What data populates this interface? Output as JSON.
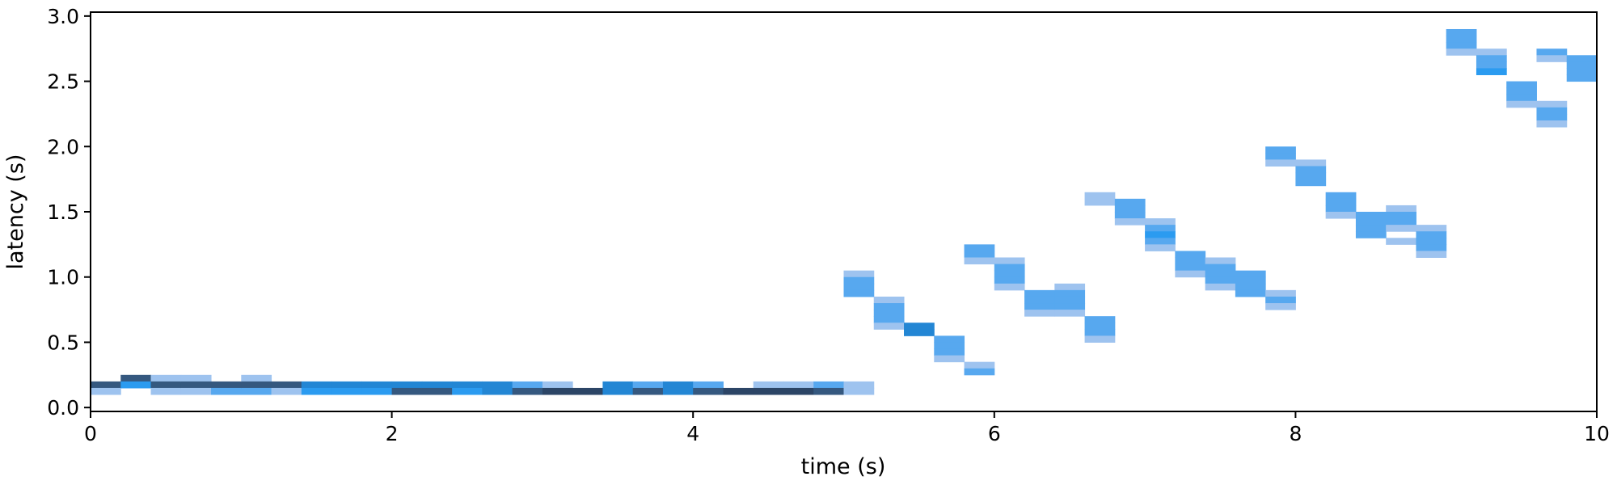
{
  "chart_data": {
    "type": "heatmap",
    "title": "",
    "xlabel": "time (s)",
    "ylabel": "latency (s)",
    "xlim": [
      0,
      10
    ],
    "ylim": [
      -0.03,
      3.03
    ],
    "xticks": [
      0,
      2,
      4,
      6,
      8,
      10
    ],
    "yticks": [
      0.0,
      0.5,
      1.0,
      1.5,
      2.0,
      2.5,
      3.0
    ],
    "xtick_labels": [
      "0",
      "2",
      "4",
      "6",
      "8",
      "10"
    ],
    "ytick_labels": [
      "0.0",
      "0.5",
      "1.0",
      "1.5",
      "2.0",
      "2.5",
      "3.0"
    ],
    "bin_width_s": 0.2,
    "bin_height_s": 0.05,
    "grid": false,
    "legend": "none",
    "colors": {
      "light": "#9ec3ef",
      "medium": "#57a8ef",
      "bright": "#2b9bf0",
      "strong": "#2386d4",
      "dark": "#35587f",
      "darkest": "#2c4566",
      "axis": "#000000"
    },
    "cells": [
      {
        "t": 0.0,
        "lat": 0.15,
        "c": "dark"
      },
      {
        "t": 0.0,
        "lat": 0.1,
        "c": "light"
      },
      {
        "t": 0.2,
        "lat": 0.2,
        "c": "dark"
      },
      {
        "t": 0.2,
        "lat": 0.15,
        "c": "bright"
      },
      {
        "t": 0.4,
        "lat": 0.2,
        "c": "light"
      },
      {
        "t": 0.4,
        "lat": 0.15,
        "c": "dark"
      },
      {
        "t": 0.4,
        "lat": 0.1,
        "c": "light"
      },
      {
        "t": 0.6,
        "lat": 0.2,
        "c": "light"
      },
      {
        "t": 0.6,
        "lat": 0.15,
        "c": "dark"
      },
      {
        "t": 0.6,
        "lat": 0.1,
        "c": "light"
      },
      {
        "t": 0.8,
        "lat": 0.15,
        "c": "dark"
      },
      {
        "t": 0.8,
        "lat": 0.1,
        "c": "medium"
      },
      {
        "t": 1.0,
        "lat": 0.2,
        "c": "light"
      },
      {
        "t": 1.0,
        "lat": 0.15,
        "c": "dark"
      },
      {
        "t": 1.0,
        "lat": 0.1,
        "c": "medium"
      },
      {
        "t": 1.2,
        "lat": 0.15,
        "c": "dark"
      },
      {
        "t": 1.2,
        "lat": 0.1,
        "c": "light"
      },
      {
        "t": 1.4,
        "lat": 0.15,
        "c": "strong"
      },
      {
        "t": 1.4,
        "lat": 0.1,
        "c": "bright"
      },
      {
        "t": 1.6,
        "lat": 0.15,
        "c": "strong"
      },
      {
        "t": 1.6,
        "lat": 0.1,
        "c": "bright"
      },
      {
        "t": 1.8,
        "lat": 0.15,
        "c": "strong"
      },
      {
        "t": 1.8,
        "lat": 0.1,
        "c": "bright"
      },
      {
        "t": 2.0,
        "lat": 0.15,
        "c": "strong"
      },
      {
        "t": 2.0,
        "lat": 0.1,
        "c": "dark"
      },
      {
        "t": 2.2,
        "lat": 0.15,
        "c": "strong"
      },
      {
        "t": 2.2,
        "lat": 0.1,
        "c": "dark"
      },
      {
        "t": 2.4,
        "lat": 0.15,
        "c": "strong"
      },
      {
        "t": 2.4,
        "lat": 0.1,
        "c": "bright"
      },
      {
        "t": 2.6,
        "lat": 0.15,
        "c": "strong"
      },
      {
        "t": 2.6,
        "lat": 0.1,
        "c": "strong"
      },
      {
        "t": 2.8,
        "lat": 0.15,
        "c": "medium"
      },
      {
        "t": 2.8,
        "lat": 0.1,
        "c": "dark"
      },
      {
        "t": 3.0,
        "lat": 0.15,
        "c": "light"
      },
      {
        "t": 3.0,
        "lat": 0.1,
        "c": "darkest"
      },
      {
        "t": 3.2,
        "lat": 0.1,
        "c": "darkest"
      },
      {
        "t": 3.4,
        "lat": 0.15,
        "c": "strong"
      },
      {
        "t": 3.4,
        "lat": 0.1,
        "c": "strong"
      },
      {
        "t": 3.6,
        "lat": 0.15,
        "c": "medium"
      },
      {
        "t": 3.6,
        "lat": 0.1,
        "c": "dark"
      },
      {
        "t": 3.8,
        "lat": 0.15,
        "c": "strong"
      },
      {
        "t": 3.8,
        "lat": 0.1,
        "c": "strong"
      },
      {
        "t": 4.0,
        "lat": 0.15,
        "c": "medium"
      },
      {
        "t": 4.0,
        "lat": 0.1,
        "c": "dark"
      },
      {
        "t": 4.2,
        "lat": 0.1,
        "c": "darkest"
      },
      {
        "t": 4.4,
        "lat": 0.15,
        "c": "light"
      },
      {
        "t": 4.4,
        "lat": 0.1,
        "c": "darkest"
      },
      {
        "t": 4.6,
        "lat": 0.15,
        "c": "light"
      },
      {
        "t": 4.6,
        "lat": 0.1,
        "c": "darkest"
      },
      {
        "t": 4.8,
        "lat": 0.15,
        "c": "medium"
      },
      {
        "t": 4.8,
        "lat": 0.1,
        "c": "dark"
      },
      {
        "t": 5.0,
        "lat": 0.15,
        "c": "light"
      },
      {
        "t": 5.0,
        "lat": 0.1,
        "c": "light"
      },
      {
        "t": 5.0,
        "lat": 1.0,
        "c": "light"
      },
      {
        "t": 5.0,
        "lat": 0.95,
        "c": "medium"
      },
      {
        "t": 5.0,
        "lat": 0.9,
        "c": "medium"
      },
      {
        "t": 5.0,
        "lat": 0.85,
        "c": "medium"
      },
      {
        "t": 5.2,
        "lat": 0.8,
        "c": "light"
      },
      {
        "t": 5.2,
        "lat": 0.75,
        "c": "medium"
      },
      {
        "t": 5.2,
        "lat": 0.7,
        "c": "medium"
      },
      {
        "t": 5.2,
        "lat": 0.65,
        "c": "medium"
      },
      {
        "t": 5.2,
        "lat": 0.6,
        "c": "light"
      },
      {
        "t": 5.4,
        "lat": 0.6,
        "c": "strong"
      },
      {
        "t": 5.4,
        "lat": 0.55,
        "c": "strong"
      },
      {
        "t": 5.6,
        "lat": 0.5,
        "c": "medium"
      },
      {
        "t": 5.6,
        "lat": 0.45,
        "c": "medium"
      },
      {
        "t": 5.6,
        "lat": 0.4,
        "c": "medium"
      },
      {
        "t": 5.6,
        "lat": 0.35,
        "c": "light"
      },
      {
        "t": 5.8,
        "lat": 0.3,
        "c": "light"
      },
      {
        "t": 5.8,
        "lat": 0.25,
        "c": "medium"
      },
      {
        "t": 5.8,
        "lat": 1.2,
        "c": "medium"
      },
      {
        "t": 5.8,
        "lat": 1.15,
        "c": "medium"
      },
      {
        "t": 5.8,
        "lat": 1.1,
        "c": "light"
      },
      {
        "t": 6.0,
        "lat": 1.1,
        "c": "light"
      },
      {
        "t": 6.0,
        "lat": 1.05,
        "c": "medium"
      },
      {
        "t": 6.0,
        "lat": 1.0,
        "c": "medium"
      },
      {
        "t": 6.0,
        "lat": 0.95,
        "c": "medium"
      },
      {
        "t": 6.0,
        "lat": 0.9,
        "c": "light"
      },
      {
        "t": 6.2,
        "lat": 0.85,
        "c": "medium"
      },
      {
        "t": 6.2,
        "lat": 0.8,
        "c": "medium"
      },
      {
        "t": 6.2,
        "lat": 0.75,
        "c": "medium"
      },
      {
        "t": 6.2,
        "lat": 0.7,
        "c": "light"
      },
      {
        "t": 6.4,
        "lat": 0.9,
        "c": "light"
      },
      {
        "t": 6.4,
        "lat": 0.85,
        "c": "medium"
      },
      {
        "t": 6.4,
        "lat": 0.8,
        "c": "medium"
      },
      {
        "t": 6.4,
        "lat": 0.75,
        "c": "medium"
      },
      {
        "t": 6.4,
        "lat": 0.7,
        "c": "light"
      },
      {
        "t": 6.6,
        "lat": 0.65,
        "c": "medium"
      },
      {
        "t": 6.6,
        "lat": 0.6,
        "c": "medium"
      },
      {
        "t": 6.6,
        "lat": 0.55,
        "c": "medium"
      },
      {
        "t": 6.6,
        "lat": 0.5,
        "c": "light"
      },
      {
        "t": 6.6,
        "lat": 1.6,
        "c": "light"
      },
      {
        "t": 6.6,
        "lat": 1.55,
        "c": "light"
      },
      {
        "t": 6.8,
        "lat": 1.55,
        "c": "medium"
      },
      {
        "t": 6.8,
        "lat": 1.5,
        "c": "medium"
      },
      {
        "t": 6.8,
        "lat": 1.45,
        "c": "medium"
      },
      {
        "t": 6.8,
        "lat": 1.4,
        "c": "light"
      },
      {
        "t": 7.0,
        "lat": 1.4,
        "c": "light"
      },
      {
        "t": 7.0,
        "lat": 1.35,
        "c": "medium"
      },
      {
        "t": 7.0,
        "lat": 1.3,
        "c": "bright"
      },
      {
        "t": 7.0,
        "lat": 1.25,
        "c": "medium"
      },
      {
        "t": 7.0,
        "lat": 1.2,
        "c": "light"
      },
      {
        "t": 7.2,
        "lat": 1.15,
        "c": "medium"
      },
      {
        "t": 7.2,
        "lat": 1.1,
        "c": "medium"
      },
      {
        "t": 7.2,
        "lat": 1.05,
        "c": "medium"
      },
      {
        "t": 7.2,
        "lat": 1.0,
        "c": "light"
      },
      {
        "t": 7.4,
        "lat": 1.1,
        "c": "light"
      },
      {
        "t": 7.4,
        "lat": 1.05,
        "c": "medium"
      },
      {
        "t": 7.4,
        "lat": 1.0,
        "c": "medium"
      },
      {
        "t": 7.4,
        "lat": 0.95,
        "c": "medium"
      },
      {
        "t": 7.4,
        "lat": 0.9,
        "c": "light"
      },
      {
        "t": 7.6,
        "lat": 1.0,
        "c": "medium"
      },
      {
        "t": 7.6,
        "lat": 0.95,
        "c": "medium"
      },
      {
        "t": 7.6,
        "lat": 0.9,
        "c": "medium"
      },
      {
        "t": 7.6,
        "lat": 0.85,
        "c": "medium"
      },
      {
        "t": 7.8,
        "lat": 0.85,
        "c": "light"
      },
      {
        "t": 7.8,
        "lat": 0.8,
        "c": "medium"
      },
      {
        "t": 7.8,
        "lat": 0.75,
        "c": "light"
      },
      {
        "t": 7.8,
        "lat": 1.95,
        "c": "medium"
      },
      {
        "t": 7.8,
        "lat": 1.9,
        "c": "medium"
      },
      {
        "t": 7.8,
        "lat": 1.85,
        "c": "light"
      },
      {
        "t": 8.0,
        "lat": 1.85,
        "c": "light"
      },
      {
        "t": 8.0,
        "lat": 1.8,
        "c": "medium"
      },
      {
        "t": 8.0,
        "lat": 1.75,
        "c": "medium"
      },
      {
        "t": 8.0,
        "lat": 1.7,
        "c": "medium"
      },
      {
        "t": 8.2,
        "lat": 1.6,
        "c": "medium"
      },
      {
        "t": 8.2,
        "lat": 1.55,
        "c": "medium"
      },
      {
        "t": 8.2,
        "lat": 1.5,
        "c": "medium"
      },
      {
        "t": 8.2,
        "lat": 1.45,
        "c": "light"
      },
      {
        "t": 8.4,
        "lat": 1.45,
        "c": "medium"
      },
      {
        "t": 8.4,
        "lat": 1.4,
        "c": "medium"
      },
      {
        "t": 8.4,
        "lat": 1.35,
        "c": "medium"
      },
      {
        "t": 8.4,
        "lat": 1.3,
        "c": "medium"
      },
      {
        "t": 8.6,
        "lat": 1.5,
        "c": "light"
      },
      {
        "t": 8.6,
        "lat": 1.45,
        "c": "medium"
      },
      {
        "t": 8.6,
        "lat": 1.4,
        "c": "medium"
      },
      {
        "t": 8.6,
        "lat": 1.35,
        "c": "light"
      },
      {
        "t": 8.6,
        "lat": 1.25,
        "c": "light"
      },
      {
        "t": 8.8,
        "lat": 1.35,
        "c": "light"
      },
      {
        "t": 8.8,
        "lat": 1.3,
        "c": "medium"
      },
      {
        "t": 8.8,
        "lat": 1.25,
        "c": "medium"
      },
      {
        "t": 8.8,
        "lat": 1.2,
        "c": "medium"
      },
      {
        "t": 8.8,
        "lat": 1.15,
        "c": "light"
      },
      {
        "t": 9.0,
        "lat": 2.85,
        "c": "medium"
      },
      {
        "t": 9.0,
        "lat": 2.8,
        "c": "medium"
      },
      {
        "t": 9.0,
        "lat": 2.75,
        "c": "medium"
      },
      {
        "t": 9.0,
        "lat": 2.7,
        "c": "light"
      },
      {
        "t": 9.2,
        "lat": 2.7,
        "c": "light"
      },
      {
        "t": 9.2,
        "lat": 2.65,
        "c": "medium"
      },
      {
        "t": 9.2,
        "lat": 2.6,
        "c": "medium"
      },
      {
        "t": 9.2,
        "lat": 2.55,
        "c": "bright"
      },
      {
        "t": 9.4,
        "lat": 2.45,
        "c": "medium"
      },
      {
        "t": 9.4,
        "lat": 2.4,
        "c": "medium"
      },
      {
        "t": 9.4,
        "lat": 2.35,
        "c": "medium"
      },
      {
        "t": 9.4,
        "lat": 2.3,
        "c": "light"
      },
      {
        "t": 9.6,
        "lat": 2.7,
        "c": "medium"
      },
      {
        "t": 9.6,
        "lat": 2.65,
        "c": "light"
      },
      {
        "t": 9.6,
        "lat": 2.3,
        "c": "light"
      },
      {
        "t": 9.6,
        "lat": 2.25,
        "c": "medium"
      },
      {
        "t": 9.6,
        "lat": 2.2,
        "c": "medium"
      },
      {
        "t": 9.6,
        "lat": 2.15,
        "c": "light"
      },
      {
        "t": 9.8,
        "lat": 2.65,
        "c": "medium"
      },
      {
        "t": 9.8,
        "lat": 2.6,
        "c": "medium"
      },
      {
        "t": 9.8,
        "lat": 2.55,
        "c": "medium"
      },
      {
        "t": 9.8,
        "lat": 2.5,
        "c": "medium"
      }
    ]
  }
}
